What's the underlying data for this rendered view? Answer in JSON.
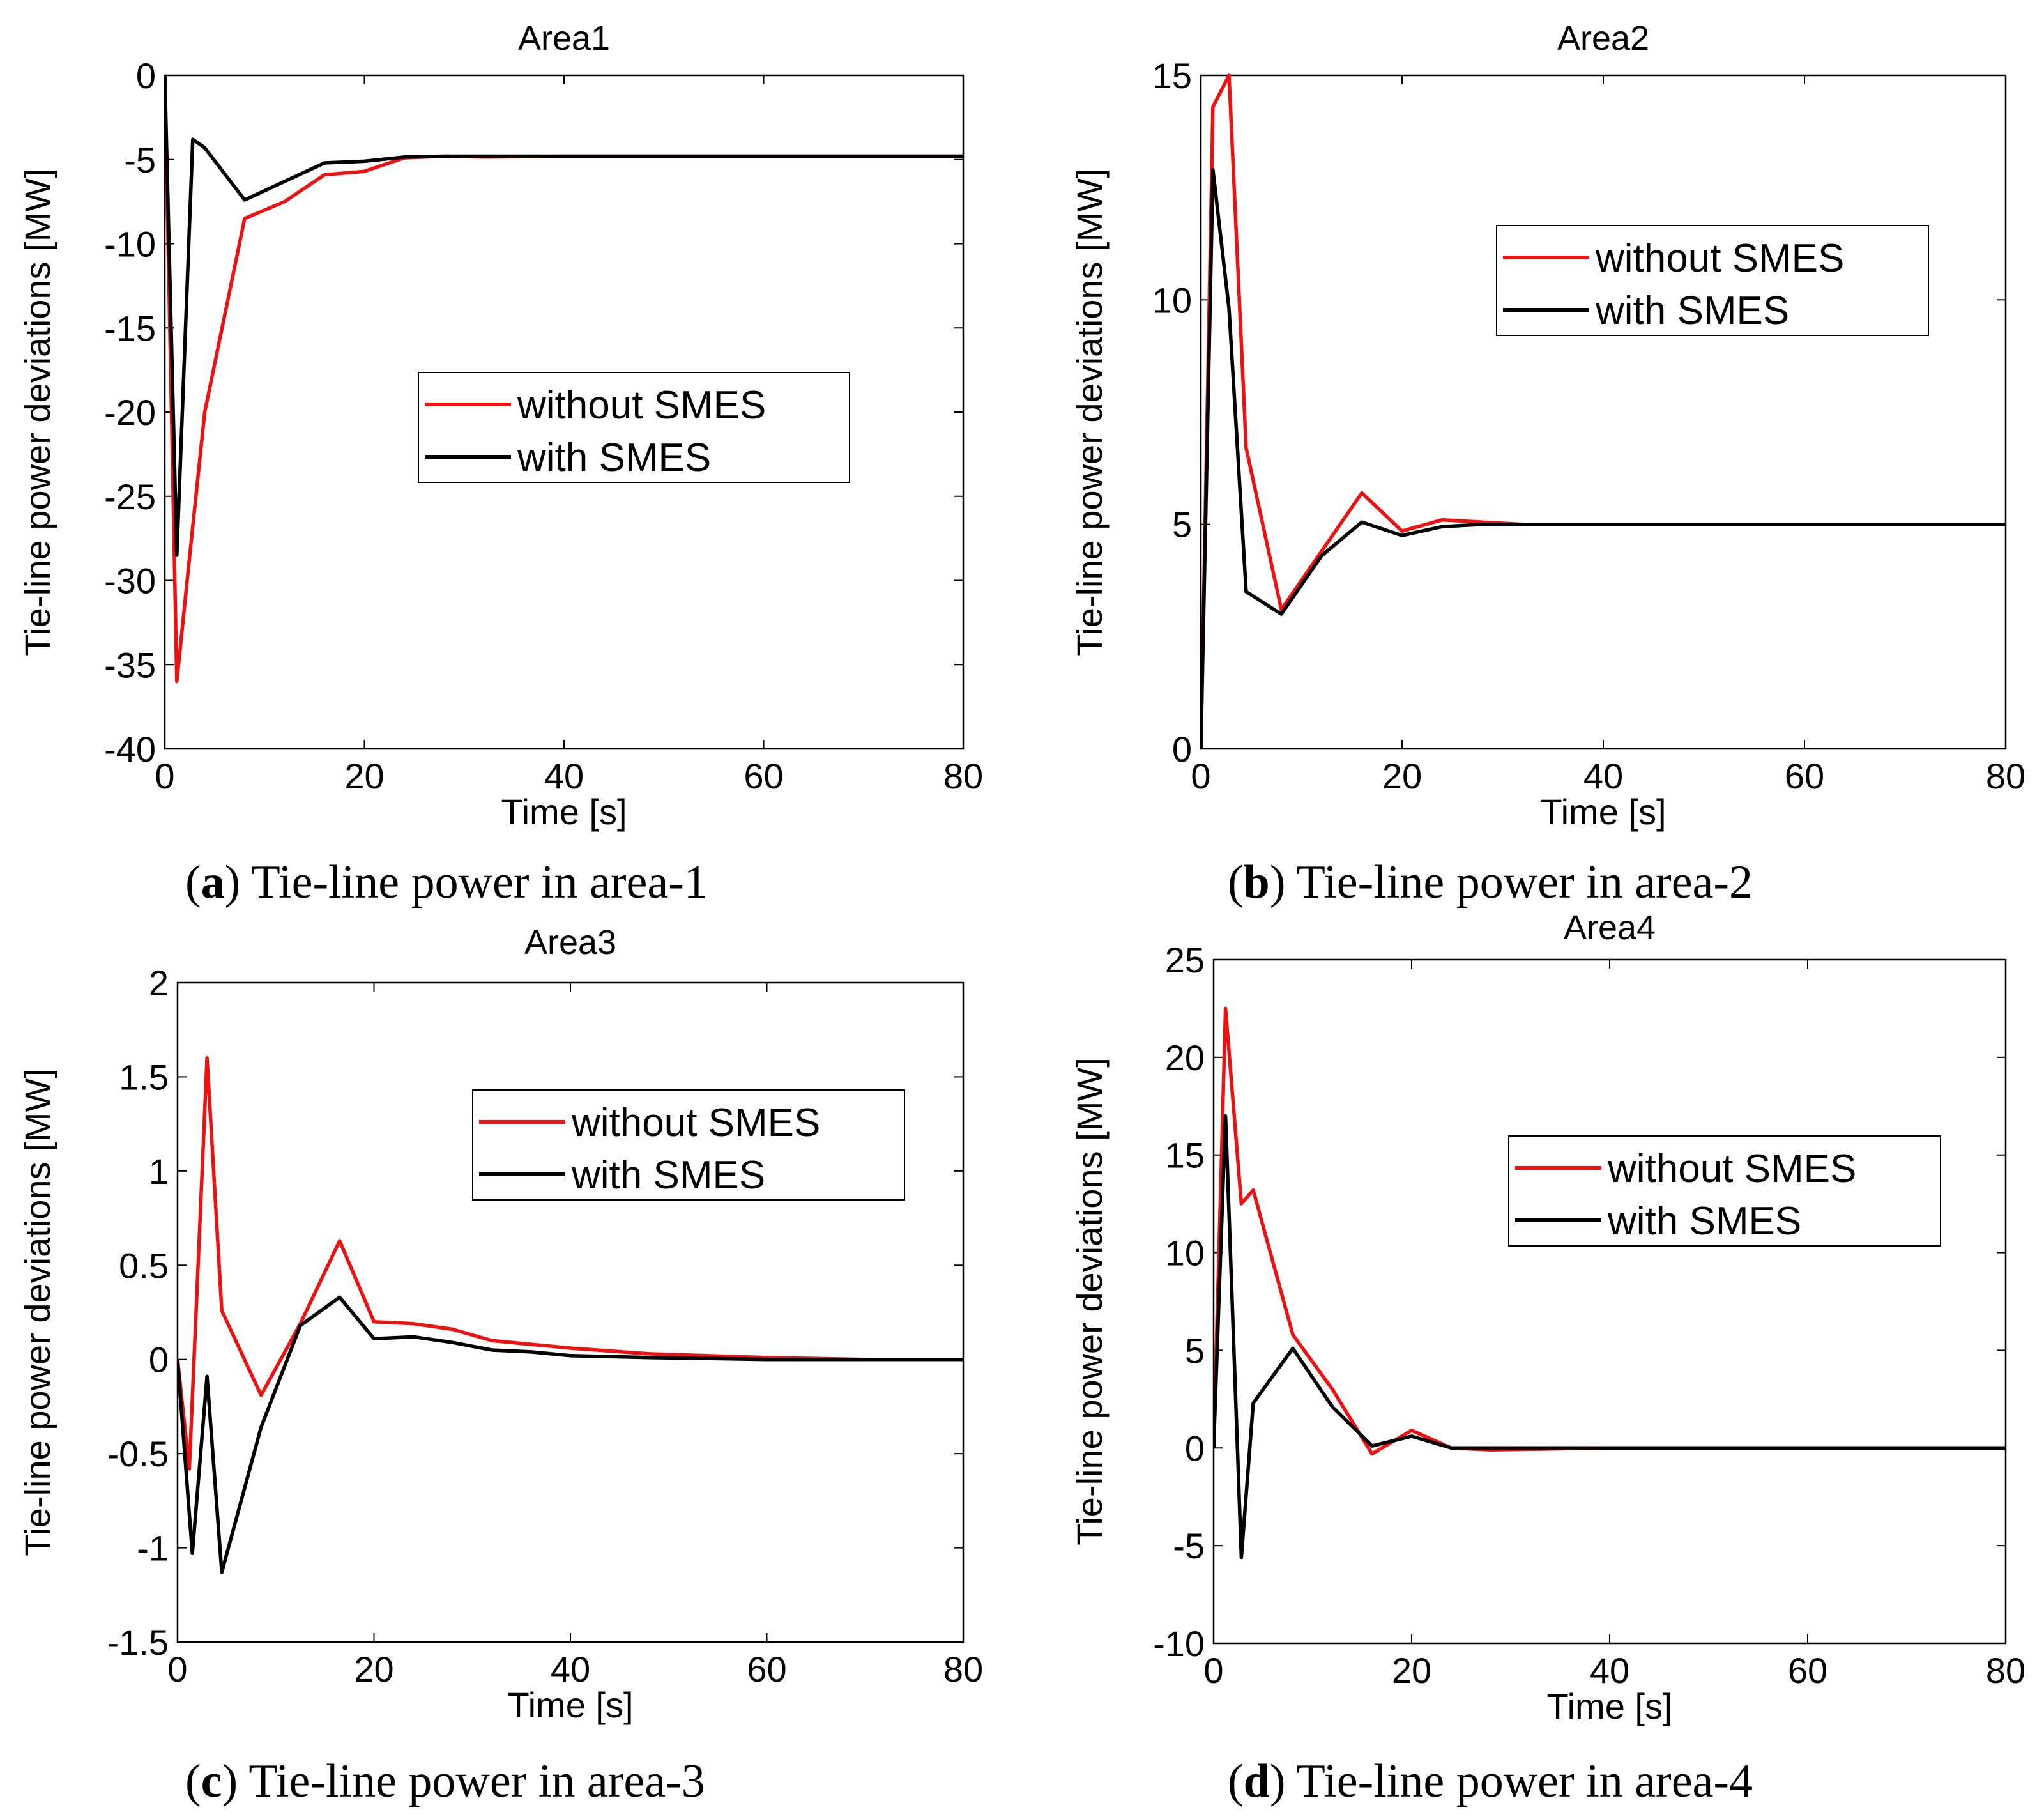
{
  "colors": {
    "without": "#ee1111",
    "with": "#000000",
    "axis": "#000000"
  },
  "chart_data": [
    {
      "type": "line",
      "title": "Area1",
      "xlabel": "Time [s]",
      "ylabel": "Tie-line power deviations [MW]",
      "xlim": [
        0,
        80
      ],
      "ylim": [
        -40,
        0
      ],
      "xticks": [
        0,
        20,
        40,
        60,
        80
      ],
      "yticks": [
        -40,
        -35,
        -30,
        -25,
        -20,
        -15,
        -10,
        -5,
        0
      ],
      "legend": "center-right",
      "caption": {
        "letter": "a",
        "text": " Tie-line power in area-1"
      },
      "series": [
        {
          "name": "without SMES",
          "color": "red",
          "x": [
            0,
            1.2,
            2.5,
            4,
            8,
            12,
            16,
            20,
            24,
            28,
            32,
            40,
            80
          ],
          "y": [
            0,
            -36,
            -28.5,
            -20,
            -8.5,
            -7.5,
            -5.9,
            -5.7,
            -4.9,
            -4.8,
            -4.85,
            -4.8,
            -4.8
          ]
        },
        {
          "name": "with SMES",
          "color": "black",
          "x": [
            0,
            1.2,
            2.8,
            4,
            8,
            12,
            16,
            20,
            24,
            28,
            40,
            80
          ],
          "y": [
            0,
            -28.5,
            -3.8,
            -4.3,
            -7.4,
            -6.3,
            -5.2,
            -5.1,
            -4.85,
            -4.8,
            -4.8,
            -4.8
          ]
        }
      ]
    },
    {
      "type": "line",
      "title": "Area2",
      "xlabel": "Time [s]",
      "ylabel": "Tie-line power deviations [MW]",
      "xlim": [
        0,
        80
      ],
      "ylim": [
        0,
        15
      ],
      "xticks": [
        0,
        20,
        40,
        60,
        80
      ],
      "yticks": [
        0,
        5,
        10,
        15
      ],
      "legend": "upper-right",
      "caption": {
        "letter": "b",
        "text": " Tie-line power in area-2"
      },
      "series": [
        {
          "name": "without SMES",
          "color": "red",
          "x": [
            0,
            1.2,
            2.8,
            4.5,
            8,
            12,
            16,
            20,
            24,
            28,
            32,
            40,
            80
          ],
          "y": [
            0,
            14.3,
            15,
            6.7,
            3.1,
            4.4,
            5.7,
            4.85,
            5.1,
            5.05,
            5.0,
            5.0,
            5.0
          ]
        },
        {
          "name": "with SMES",
          "color": "black",
          "x": [
            0,
            1.2,
            2.8,
            4.5,
            8,
            12,
            16,
            20,
            24,
            28,
            40,
            80
          ],
          "y": [
            0,
            12.9,
            9.8,
            3.5,
            3.0,
            4.3,
            5.05,
            4.75,
            4.95,
            5.0,
            5.0,
            5.0
          ]
        }
      ]
    },
    {
      "type": "line",
      "title": "Area3",
      "xlabel": "Time [s]",
      "ylabel": "Tie-line power deviations [MW]",
      "xlim": [
        0,
        80
      ],
      "ylim": [
        -1.5,
        2
      ],
      "xticks": [
        0,
        20,
        40,
        60,
        80
      ],
      "yticks": [
        -1.5,
        -1,
        -0.5,
        0,
        0.5,
        1,
        1.5,
        2
      ],
      "legend": "upper-right",
      "caption": {
        "letter": "c",
        "text": " Tie-line power in area-3"
      },
      "series": [
        {
          "name": "without SMES",
          "color": "red",
          "x": [
            0,
            1.2,
            3,
            4.5,
            8.5,
            12.5,
            16.5,
            20,
            24,
            28,
            32,
            36,
            40,
            48,
            60,
            70,
            80
          ],
          "y": [
            0,
            -0.58,
            1.6,
            0.26,
            -0.19,
            0.19,
            0.63,
            0.2,
            0.19,
            0.16,
            0.1,
            0.08,
            0.06,
            0.03,
            0.01,
            0.0,
            0.0
          ]
        },
        {
          "name": "with SMES",
          "color": "black",
          "x": [
            0,
            1.5,
            3,
            4.5,
            8.5,
            12.5,
            16.5,
            20,
            24,
            28,
            32,
            36,
            40,
            48,
            60,
            80
          ],
          "y": [
            0,
            -1.03,
            -0.09,
            -1.13,
            -0.36,
            0.18,
            0.33,
            0.11,
            0.12,
            0.09,
            0.05,
            0.04,
            0.02,
            0.01,
            0.0,
            0.0
          ]
        }
      ]
    },
    {
      "type": "line",
      "title": "Area4",
      "xlabel": "Time [s]",
      "ylabel": "Tie-line power deviations [MW]",
      "xlim": [
        0,
        80
      ],
      "ylim": [
        -10,
        25
      ],
      "xticks": [
        0,
        20,
        40,
        60,
        80
      ],
      "yticks": [
        -10,
        -5,
        0,
        5,
        10,
        15,
        20,
        25
      ],
      "legend": "upper-right",
      "caption": {
        "letter": "d",
        "text": " Tie-line power in area-4"
      },
      "series": [
        {
          "name": "without SMES",
          "color": "red",
          "x": [
            0,
            1.2,
            2.8,
            4,
            8,
            12,
            16,
            20,
            24,
            28,
            40,
            80
          ],
          "y": [
            0,
            22.5,
            12.5,
            13.2,
            5.8,
            3.0,
            -0.3,
            0.9,
            0.0,
            -0.1,
            0.0,
            0.0
          ]
        },
        {
          "name": "with SMES",
          "color": "black",
          "x": [
            0,
            1.2,
            2.8,
            4,
            8,
            12,
            16,
            20,
            24,
            40,
            80
          ],
          "y": [
            0,
            17,
            -5.6,
            2.3,
            5.1,
            2.1,
            0.1,
            0.6,
            0.0,
            0.0,
            0.0
          ]
        }
      ]
    }
  ]
}
